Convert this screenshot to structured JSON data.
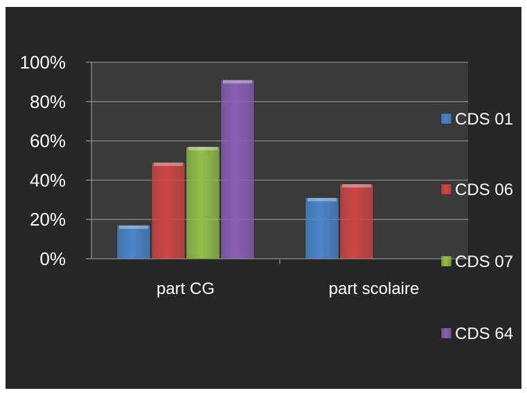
{
  "chart_data": {
    "type": "bar",
    "categories": [
      "part CG",
      "part scolaire"
    ],
    "series": [
      {
        "name": "CDS 01",
        "values": [
          17,
          31
        ],
        "color": "#4a86cc"
      },
      {
        "name": "CDS 06",
        "values": [
          49,
          38
        ],
        "color": "#cf4644"
      },
      {
        "name": "CDS 07",
        "values": [
          57,
          0
        ],
        "color": "#93c04a"
      },
      {
        "name": "CDS 64",
        "values": [
          91,
          0
        ],
        "color": "#8a5fb6"
      }
    ],
    "ylim": [
      0,
      100
    ],
    "yticks": [
      "0%",
      "20%",
      "40%",
      "60%",
      "80%",
      "100%"
    ],
    "grid": true,
    "legend": "right",
    "background": "#262626",
    "plot_background": "#3a3a3a"
  }
}
